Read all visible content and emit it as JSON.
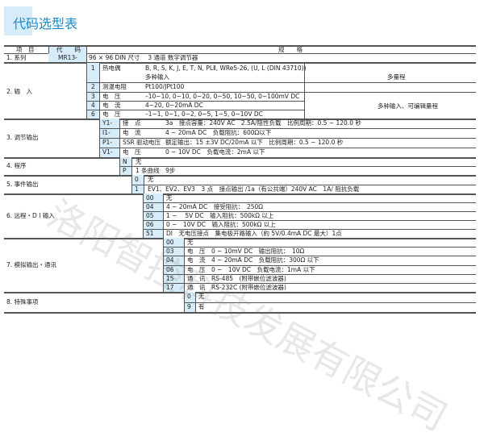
{
  "title": "代码选型表",
  "header": {
    "item": "项　目",
    "code": "代　　码",
    "spec": "规　　格"
  },
  "series": {
    "item": "1. 系列",
    "code": "MR13-",
    "spec": "96 × 96 DIN 尺寸　 3 通道 数字调节器"
  },
  "input": {
    "item": "2. 输　入",
    "note1": "多量程",
    "note2": "多种输入、可编辑量程",
    "rows": [
      {
        "code": "1",
        "label": "热电偶",
        "desc": "B, R, S, K, J, E, T, N, PLⅡ, WRe5-26, (U, L (DIN 43710))",
        "desc2": "多种输入"
      },
      {
        "code": "2",
        "label": "测温电阻",
        "desc": "Pt100/JPt100"
      },
      {
        "code": "3",
        "label": "电　压",
        "desc": "–10~10, 0~10, 0~20, 0~50, 10~50, 0~100mV DC"
      },
      {
        "code": "4",
        "label": "电　流",
        "desc": "4~20, 0~20mA DC"
      },
      {
        "code": "6",
        "label": "电　压",
        "desc": "–1~1, 0~1, 0~2, 0~5, 1~5, 0~10V DC"
      }
    ]
  },
  "sections": [
    {
      "item": "3. 调节输出",
      "rows": [
        {
          "code": "Y1-",
          "label": "接　点",
          "desc": "3a　接点容量：240V AC　2.5A/阻性负载　比例周期：0.5 ~ 120.0 秒"
        },
        {
          "code": "I1-",
          "label": "电　流",
          "desc": "4 ~ 20mA DC　负载阻抗：600Ω以下"
        },
        {
          "code": "P1-",
          "label": "SSR 驱动电压",
          "desc": "额定输出：15 ±3V DC/20mA 以下　比例周期：0.5 ~ 120.0 秒"
        },
        {
          "code": "V1-",
          "label": "电　压",
          "desc": "0 ~ 10V DC　负载电流：2mA 以下"
        }
      ]
    },
    {
      "item": "4. 程序",
      "rows": [
        {
          "code": "N",
          "desc": "无"
        },
        {
          "code": "P",
          "desc": "1 条曲线　9步"
        }
      ]
    },
    {
      "item": "5. 事件输出",
      "rows": [
        {
          "code": "0",
          "desc": "无"
        },
        {
          "code": "1",
          "desc": "EV1、EV2、EV3　3 点　接点输出 /1a（有公共端）240V AC　1A/ 阻抗负载"
        }
      ]
    },
    {
      "item": "6. 远程・D I 输入",
      "rows": [
        {
          "code": "00",
          "desc": "无"
        },
        {
          "code": "04",
          "desc": "4 ~ 20mA DC　接受阻抗：　250Ω"
        },
        {
          "code": "05",
          "desc": "1 ~　 5V DC　输入阻抗：500kΩ 以上"
        },
        {
          "code": "06",
          "desc": "0 ~　10V DC　输入阻抗：500kΩ 以上"
        },
        {
          "code": "51",
          "desc": "DI　无电压接点　集电极开路输入（約 5V/0.4mA DC 最大）1点"
        }
      ]
    },
    {
      "item": "7. 模拟输出・通讯",
      "rows": [
        {
          "code": "00",
          "desc": "无"
        },
        {
          "code": "03",
          "desc": "电　压　0 ~ 10mV DC　输出阻抗：　10Ω"
        },
        {
          "code": "04",
          "desc": "电　流　4 ~ 20mA DC　负载阻抗：300Ω 以下"
        },
        {
          "code": "06",
          "desc": "电　压　0 ~　10V DC　负载电流：1mA 以下"
        },
        {
          "code": "15",
          "desc": "通　讯　RS-485　(附带嵌位滤波器)"
        },
        {
          "code": "17",
          "desc": "通　讯　RS-232C (附带嵌位滤波器)"
        }
      ]
    },
    {
      "item": "8. 特殊事项",
      "rows": [
        {
          "code": "0",
          "desc": "无"
        },
        {
          "code": "9",
          "desc": "有"
        }
      ]
    }
  ],
  "watermark": "洛阳智控科技发展有限公司"
}
